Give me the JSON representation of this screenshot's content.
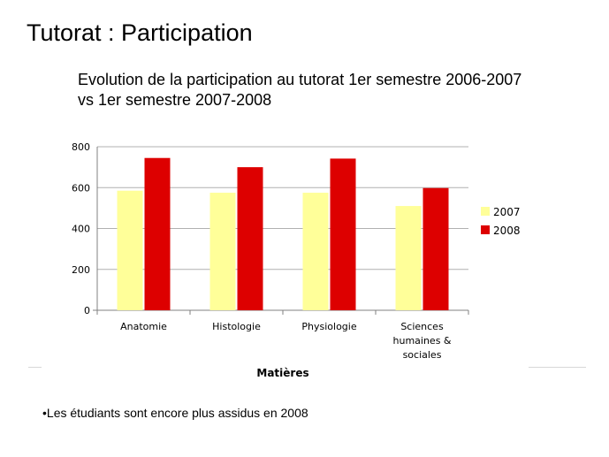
{
  "slide": {
    "title": "Tutorat : Participation",
    "bullet": "•Les étudiants sont encore plus assidus en 2008"
  },
  "chart_data": {
    "type": "bar",
    "title_lines": [
      "Evolution de la participation au tutorat 1er semestre 2006-2007",
      "vs 1er semestre 2007-2008"
    ],
    "categories": [
      [
        "Anatomie"
      ],
      [
        "Histologie"
      ],
      [
        "Physiologie"
      ],
      [
        "Sciences",
        "humaines &",
        "sociales"
      ]
    ],
    "series": [
      {
        "name": "2007",
        "color": "#ffff99",
        "values": [
          585,
          575,
          575,
          510
        ]
      },
      {
        "name": "2008",
        "color": "#dd0000",
        "values": [
          745,
          700,
          742,
          598
        ]
      }
    ],
    "xlabel": "Matières",
    "ylabel": "",
    "ylim": [
      0,
      800
    ],
    "yticks": [
      0,
      200,
      400,
      600,
      800
    ],
    "grid": true,
    "legend": "right"
  }
}
